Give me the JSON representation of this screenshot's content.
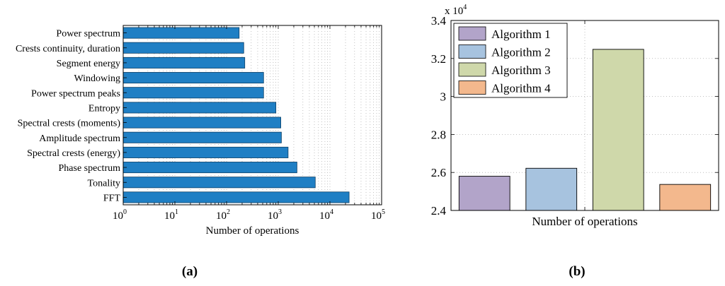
{
  "chart_data": [
    {
      "id": "a",
      "panel_label": "(a)",
      "type": "bar",
      "orientation": "horizontal",
      "categories": [
        "Power spectrum",
        "Crests continuity, duration",
        "Segment energy",
        "Windowing",
        "Power spectrum peaks",
        "Entropy",
        "Spectral crests (moments)",
        "Amplitude spectrum",
        "Spectral crests (energy)",
        "Phase spectrum",
        "Tonality",
        "FFT"
      ],
      "values": [
        175,
        215,
        225,
        520,
        520,
        900,
        1120,
        1150,
        1550,
        2300,
        5200,
        23500
      ],
      "xlabel": "Number of operations",
      "ylabel": "",
      "xscale": "log",
      "xlim": [
        1,
        100000
      ],
      "xticks": [
        {
          "base": "10",
          "exp": "0"
        },
        {
          "base": "10",
          "exp": "1"
        },
        {
          "base": "10",
          "exp": "2"
        },
        {
          "base": "10",
          "exp": "3"
        },
        {
          "base": "10",
          "exp": "4"
        },
        {
          "base": "10",
          "exp": "5"
        }
      ],
      "grid": true,
      "bar_color": "#1f7fc4"
    },
    {
      "id": "b",
      "panel_label": "(b)",
      "type": "bar",
      "categories": [
        "Algorithm 1",
        "Algorithm 2",
        "Algorithm 3",
        "Algorithm 4"
      ],
      "values": [
        25800,
        26220,
        32480,
        25370
      ],
      "colors": [
        "#b2a4c9",
        "#a7c3df",
        "#cfd8aa",
        "#f3b88d"
      ],
      "xlabel": "Number of operations",
      "ylabel": "",
      "ylim": [
        24000,
        34000
      ],
      "yticks": [
        "2.4",
        "2.6",
        "2.8",
        "3",
        "3.2",
        "3.4"
      ],
      "multiplier": {
        "base": "x 10",
        "exp": "4"
      },
      "legend": {
        "position": "top-left",
        "entries": [
          "Algorithm 1",
          "Algorithm 2",
          "Algorithm 3",
          "Algorithm 4"
        ]
      },
      "grid": true
    }
  ]
}
